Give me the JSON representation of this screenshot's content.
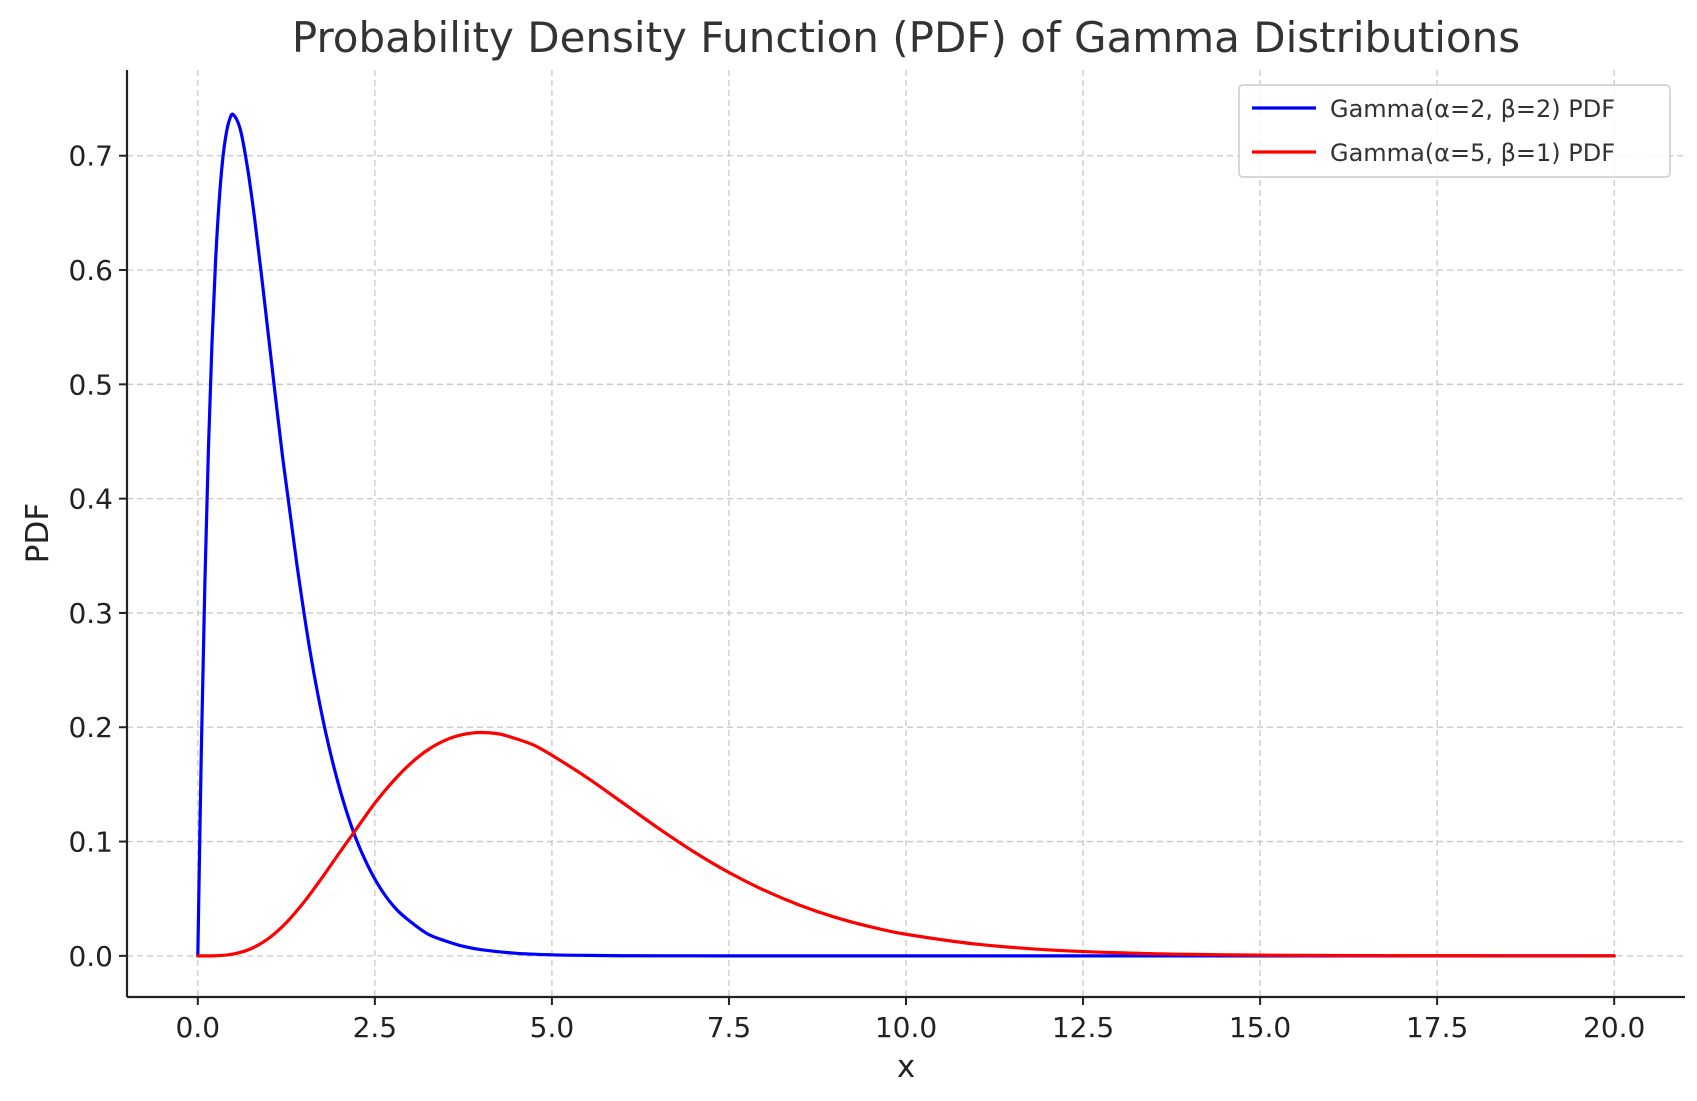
{
  "chart_data": {
    "type": "line",
    "title": "Probability Density Function (PDF) of Gamma Distributions",
    "xlabel": "x",
    "ylabel": "PDF",
    "xlim": [
      -1.0,
      21.0
    ],
    "ylim": [
      -0.036,
      0.775
    ],
    "xticks": [
      0,
      2.5,
      5,
      7.5,
      10,
      12.5,
      15,
      17.5,
      20
    ],
    "xtick_labels": [
      "0.0",
      "2.5",
      "5.0",
      "7.5",
      "10.0",
      "12.5",
      "15.0",
      "17.5",
      "20.0"
    ],
    "yticks": [
      0,
      0.1,
      0.2,
      0.3,
      0.4,
      0.5,
      0.6,
      0.7
    ],
    "ytick_labels": [
      "0.0",
      "0.1",
      "0.2",
      "0.3",
      "0.4",
      "0.5",
      "0.6",
      "0.7"
    ],
    "grid": true,
    "legend_position": "top-right",
    "x_range": [
      0,
      20
    ],
    "series": [
      {
        "name": "Gamma(α=2, β=2) PDF",
        "color": "#0000ff",
        "x": [
          0,
          0.05,
          0.1,
          0.15,
          0.2,
          0.25,
          0.3,
          0.35,
          0.4,
          0.45,
          0.5,
          0.6,
          0.7,
          0.8,
          0.9,
          1.0,
          1.2,
          1.4,
          1.6,
          1.8,
          2.0,
          2.2,
          2.4,
          2.6,
          2.8,
          3.0,
          3.25,
          3.5,
          3.75,
          4.0,
          4.5,
          5.0,
          5.5,
          6.0,
          7.0,
          8.0,
          10.0,
          12.5,
          15.0,
          17.5,
          20.0
        ],
        "y": [
          0,
          0.181,
          0.327,
          0.444,
          0.536,
          0.607,
          0.659,
          0.696,
          0.719,
          0.732,
          0.736,
          0.723,
          0.69,
          0.646,
          0.595,
          0.541,
          0.435,
          0.342,
          0.261,
          0.197,
          0.147,
          0.108,
          0.079,
          0.057,
          0.041,
          0.03,
          0.019,
          0.013,
          0.0083,
          0.0054,
          0.0022,
          0.0009,
          0.0004,
          0.0001,
          2e-05,
          4e-06,
          0.0,
          0.0,
          0.0,
          0.0,
          0.0
        ]
      },
      {
        "name": "Gamma(α=5, β=1) PDF",
        "color": "#ff0000",
        "x": [
          0,
          0.25,
          0.5,
          0.75,
          1.0,
          1.25,
          1.5,
          1.75,
          2.0,
          2.25,
          2.5,
          2.75,
          3.0,
          3.25,
          3.5,
          3.75,
          4.0,
          4.25,
          4.5,
          4.75,
          5.0,
          5.5,
          6.0,
          6.5,
          7.0,
          7.5,
          8.0,
          8.5,
          9.0,
          9.5,
          10.0,
          11.0,
          12.0,
          13.0,
          14.0,
          15.0,
          16.0,
          17.0,
          18.0,
          19.0,
          20.0
        ],
        "y": [
          0,
          0.0001,
          0.0016,
          0.0062,
          0.0153,
          0.0291,
          0.0471,
          0.068,
          0.0902,
          0.112,
          0.1336,
          0.1522,
          0.168,
          0.1803,
          0.1888,
          0.1937,
          0.1954,
          0.1942,
          0.1898,
          0.1842,
          0.1755,
          0.1558,
          0.1339,
          0.1118,
          0.0912,
          0.0729,
          0.0573,
          0.0443,
          0.0337,
          0.0254,
          0.0189,
          0.0102,
          0.0053,
          0.0027,
          0.0013,
          0.0006,
          0.0003,
          0.0001,
          6e-05,
          3e-05,
          1e-05
        ]
      }
    ]
  }
}
